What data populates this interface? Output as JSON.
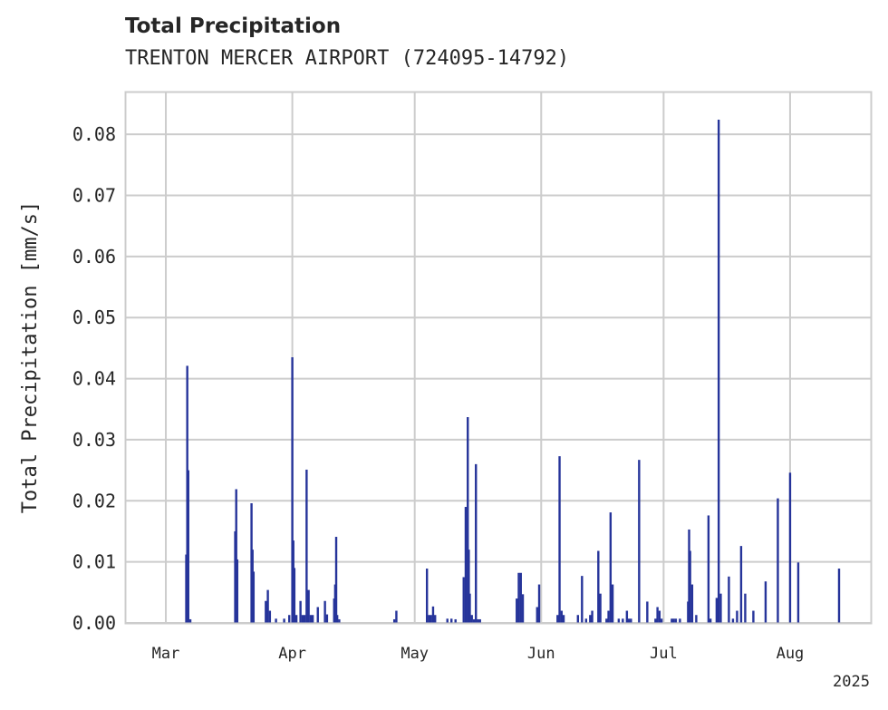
{
  "header": {
    "title": "Total Precipitation",
    "subtitle": "TRENTON MERCER AIRPORT (724095-14792)"
  },
  "colors": {
    "series": "#26349a",
    "grid": "#cccccc",
    "frame": "#cccccc",
    "text": "#262626"
  },
  "chart_data": {
    "type": "bar",
    "title": "Total Precipitation",
    "subtitle": "TRENTON MERCER AIRPORT (724095-14792)",
    "xlabel": "",
    "ylabel": "Total Precipitation [mm/s]",
    "x_axis": "date",
    "xlim": [
      "2025-02-19",
      "2025-08-21"
    ],
    "ylim": [
      0,
      0.087
    ],
    "yticks": [
      0.0,
      0.01,
      0.02,
      0.03,
      0.04,
      0.05,
      0.06,
      0.07,
      0.08
    ],
    "ytick_labels": [
      "0.00",
      "0.01",
      "0.02",
      "0.03",
      "0.04",
      "0.05",
      "0.06",
      "0.07",
      "0.08"
    ],
    "xticks": [
      "2025-03-01",
      "2025-04-01",
      "2025-05-01",
      "2025-06-01",
      "2025-07-01",
      "2025-08-01"
    ],
    "xtick_labels": [
      "Mar",
      "Apr",
      "May",
      "Jun",
      "Jul",
      "Aug"
    ],
    "x_offset_label": "2025",
    "grid": true,
    "series": [
      {
        "x": [
          "2025-03-06T00:00",
          "2025-03-06T06:00",
          "2025-03-06T12:00",
          "2025-03-06T18:00",
          "2025-03-07T00:00",
          "2025-03-18T00:00",
          "2025-03-18T06:00",
          "2025-03-18T12:00",
          "2025-03-22T00:00",
          "2025-03-22T06:00",
          "2025-03-22T12:00",
          "2025-03-25T12:00",
          "2025-03-26T00:00",
          "2025-03-26T12:00",
          "2025-03-28T00:00",
          "2025-03-30T00:00",
          "2025-03-31T06:00",
          "2025-04-01T00:00",
          "2025-04-01T06:00",
          "2025-04-01T12:00",
          "2025-04-02T00:00",
          "2025-04-03T00:00",
          "2025-04-03T12:00",
          "2025-04-04T00:00",
          "2025-04-04T12:00",
          "2025-04-05T00:00",
          "2025-04-05T12:00",
          "2025-04-06T00:00",
          "2025-04-07T06:00",
          "2025-04-09T00:00",
          "2025-04-09T12:00",
          "2025-04-11T06:00",
          "2025-04-11T12:00",
          "2025-04-11T18:00",
          "2025-04-12T00:00",
          "2025-04-12T12:00",
          "2025-04-26T00:00",
          "2025-04-26T12:00",
          "2025-05-04T00:00",
          "2025-05-04T12:00",
          "2025-05-05T00:00",
          "2025-05-05T12:00",
          "2025-05-06T00:00",
          "2025-05-09T00:00",
          "2025-05-10T00:00",
          "2025-05-11T00:00",
          "2025-05-13T00:00",
          "2025-05-13T12:00",
          "2025-05-14T00:00",
          "2025-05-14T06:00",
          "2025-05-14T12:00",
          "2025-05-15T00:00",
          "2025-05-15T12:00",
          "2025-05-16T00:00",
          "2025-05-16T12:00",
          "2025-05-17T00:00",
          "2025-05-26T00:00",
          "2025-05-26T12:00",
          "2025-05-27T00:00",
          "2025-05-27T12:00",
          "2025-05-31T00:00",
          "2025-05-31T12:00",
          "2025-06-05T00:00",
          "2025-06-05T12:00",
          "2025-06-06T00:00",
          "2025-06-06T12:00",
          "2025-06-10T00:00",
          "2025-06-11T00:00",
          "2025-06-12T00:00",
          "2025-06-13T00:00",
          "2025-06-13T12:00",
          "2025-06-15T00:00",
          "2025-06-15T12:00",
          "2025-06-17T00:00",
          "2025-06-17T12:00",
          "2025-06-18T00:00",
          "2025-06-18T12:00",
          "2025-06-20T00:00",
          "2025-06-21T00:00",
          "2025-06-22T00:00",
          "2025-06-22T12:00",
          "2025-06-23T00:00",
          "2025-06-25T00:00",
          "2025-06-27T00:00",
          "2025-06-29T00:00",
          "2025-06-29T12:00",
          "2025-06-30T00:00",
          "2025-06-30T12:00",
          "2025-07-03T00:00",
          "2025-07-03T12:00",
          "2025-07-04T00:00",
          "2025-07-05T00:00",
          "2025-07-07T00:00",
          "2025-07-07T06:00",
          "2025-07-07T12:00",
          "2025-07-08T00:00",
          "2025-07-09T00:00",
          "2025-07-12T00:00",
          "2025-07-12T12:00",
          "2025-07-14T00:00",
          "2025-07-14T12:00",
          "2025-07-15T00:00",
          "2025-07-17T00:00",
          "2025-07-18T00:00",
          "2025-07-19T00:00",
          "2025-07-20T00:00",
          "2025-07-21T00:00",
          "2025-07-23T00:00",
          "2025-07-26T00:00",
          "2025-07-29T00:00",
          "2025-08-01T00:00",
          "2025-08-03T00:00",
          "2025-08-13T00:00"
        ],
        "values": [
          0.0112,
          0.0421,
          0.025,
          0.0006,
          0.0006,
          0.015,
          0.0219,
          0.0104,
          0.0196,
          0.012,
          0.0084,
          0.0036,
          0.0054,
          0.002,
          0.0007,
          0.0007,
          0.0013,
          0.0435,
          0.0135,
          0.009,
          0.0013,
          0.0036,
          0.0013,
          0.0013,
          0.0251,
          0.0054,
          0.0013,
          0.0013,
          0.0026,
          0.0036,
          0.0014,
          0.004,
          0.0063,
          0.0141,
          0.0013,
          0.0006,
          0.0006,
          0.002,
          0.0089,
          0.0013,
          0.0013,
          0.0027,
          0.0013,
          0.0007,
          0.0007,
          0.0006,
          0.0075,
          0.019,
          0.0337,
          0.012,
          0.0048,
          0.0013,
          0.0006,
          0.026,
          0.0006,
          0.0006,
          0.004,
          0.0082,
          0.0082,
          0.0047,
          0.0026,
          0.0063,
          0.0013,
          0.0273,
          0.002,
          0.0013,
          0.0013,
          0.0077,
          0.0007,
          0.0013,
          0.002,
          0.0118,
          0.0048,
          0.0007,
          0.002,
          0.0181,
          0.0063,
          0.0007,
          0.0007,
          0.002,
          0.0007,
          0.0007,
          0.0267,
          0.0035,
          0.0007,
          0.0026,
          0.002,
          0.0007,
          0.0007,
          0.0007,
          0.0007,
          0.0007,
          0.0035,
          0.0153,
          0.0118,
          0.0063,
          0.0013,
          0.0176,
          0.0007,
          0.0041,
          0.0824,
          0.0048,
          0.0076,
          0.0007,
          0.002,
          0.0126,
          0.0048,
          0.002,
          0.0068,
          0.0204,
          0.0246,
          0.0099,
          0.0089
        ]
      }
    ]
  }
}
